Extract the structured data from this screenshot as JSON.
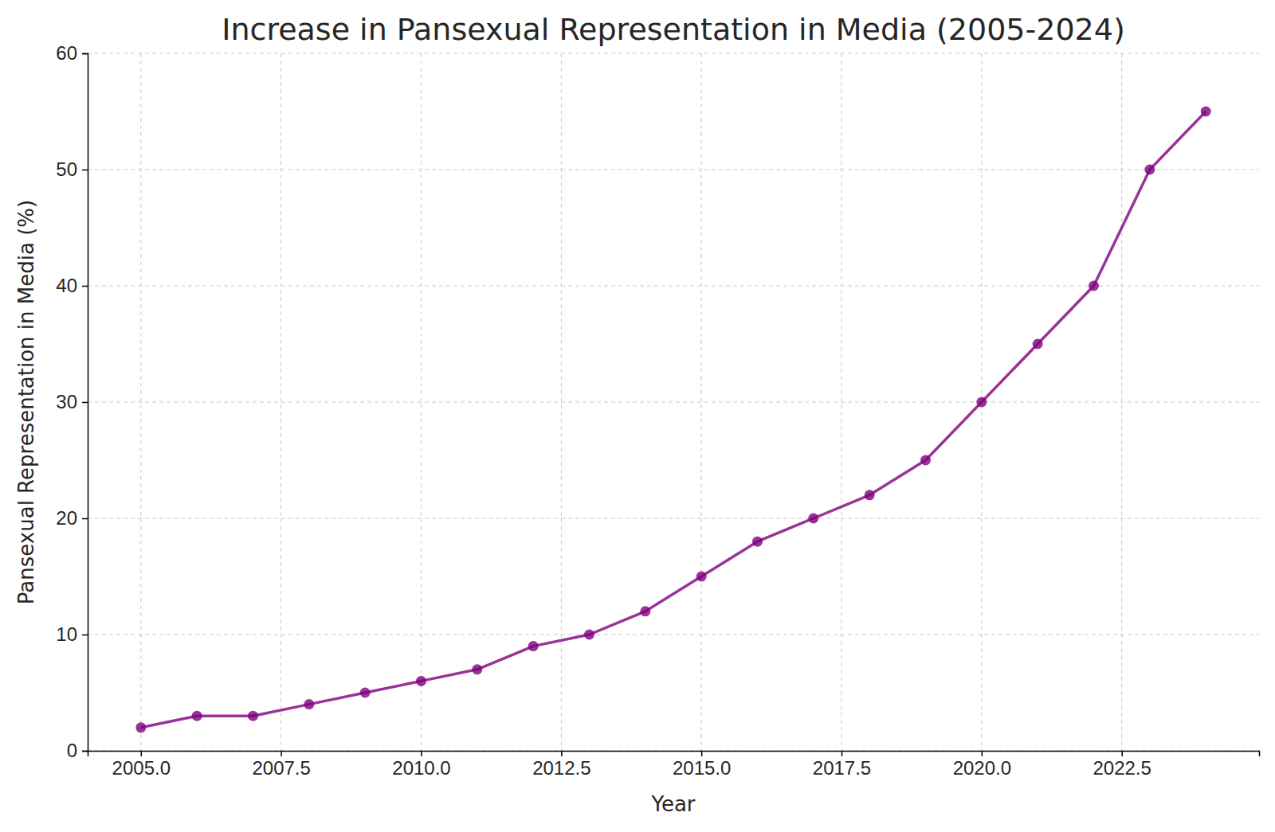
{
  "chart_data": {
    "type": "line",
    "title": "Increase in Pansexual Representation in Media (2005-2024)",
    "x_label": "Year",
    "y_label": "Pansexual Representation in Media (%)",
    "x": [
      2005,
      2006,
      2007,
      2008,
      2009,
      2010,
      2011,
      2012,
      2013,
      2014,
      2015,
      2016,
      2017,
      2018,
      2019,
      2020,
      2021,
      2022,
      2023,
      2024
    ],
    "values": [
      2,
      3,
      3,
      4,
      5,
      6,
      7,
      9,
      10,
      12,
      15,
      18,
      20,
      22,
      25,
      30,
      35,
      40,
      50,
      55
    ],
    "color": "purple",
    "marker": "o",
    "line_style": "solid",
    "xlim": [
      2004.05,
      2024.95
    ],
    "xticks": [
      {
        "value": 2005,
        "label": "2005.0"
      },
      {
        "value": 2007.5,
        "label": "2007.5"
      },
      {
        "value": 2010,
        "label": "2010.0"
      },
      {
        "value": 2012.5,
        "label": "2012.5"
      },
      {
        "value": 2015,
        "label": "2015.0"
      },
      {
        "value": 2017.5,
        "label": "2017.5"
      },
      {
        "value": 2020,
        "label": "2020.0"
      },
      {
        "value": 2022.5,
        "label": "2022.5"
      }
    ],
    "ylim": [
      0,
      60
    ],
    "yticks": [
      0,
      10,
      20,
      30,
      40,
      50,
      60
    ],
    "grid": true
  }
}
